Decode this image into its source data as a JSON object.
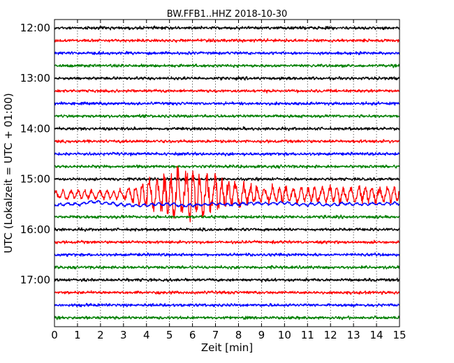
{
  "chart_data": {
    "type": "line",
    "title": "BW.FFB1..HHZ 2018-10-30",
    "xlabel": "Zeit  [min]",
    "ylabel": "UTC (Lokalzeit = UTC + 01:00)",
    "xlim": [
      0,
      15
    ],
    "x_ticks": [
      0,
      1,
      2,
      3,
      4,
      5,
      6,
      7,
      8,
      9,
      10,
      11,
      12,
      13,
      14,
      15
    ],
    "x_tick_labels": [
      "0",
      "1",
      "2",
      "3",
      "4",
      "5",
      "6",
      "7",
      "8",
      "9",
      "10",
      "11",
      "12",
      "13",
      "14",
      "15"
    ],
    "y_tick_labels": [
      "12:00",
      "13:00",
      "14:00",
      "15:00",
      "16:00",
      "17:00"
    ],
    "grid": "vertical dotted at each minute",
    "trace_interval_minutes": 15,
    "start_time": "12:00",
    "color_cycle": [
      "#000000",
      "#ff0000",
      "#0000ff",
      "#008000"
    ],
    "traces": [
      {
        "start": "12:00",
        "color": "#000000"
      },
      {
        "start": "12:15",
        "color": "#ff0000"
      },
      {
        "start": "12:30",
        "color": "#0000ff"
      },
      {
        "start": "12:45",
        "color": "#008000"
      },
      {
        "start": "13:00",
        "color": "#000000"
      },
      {
        "start": "13:15",
        "color": "#ff0000"
      },
      {
        "start": "13:30",
        "color": "#0000ff"
      },
      {
        "start": "13:45",
        "color": "#008000"
      },
      {
        "start": "14:00",
        "color": "#000000"
      },
      {
        "start": "14:15",
        "color": "#ff0000"
      },
      {
        "start": "14:30",
        "color": "#0000ff"
      },
      {
        "start": "14:45",
        "color": "#008000"
      },
      {
        "start": "15:00",
        "color": "#000000"
      },
      {
        "start": "15:15",
        "color": "#ff0000",
        "event": {
          "onset_min": 3.0,
          "peak_min": 5.5,
          "description": "large-amplitude earthquake signal"
        }
      },
      {
        "start": "15:30",
        "color": "#0000ff",
        "event": {
          "onset_min": 0.0,
          "description": "elevated wander"
        }
      },
      {
        "start": "15:45",
        "color": "#008000"
      },
      {
        "start": "16:00",
        "color": "#000000"
      },
      {
        "start": "16:15",
        "color": "#ff0000"
      },
      {
        "start": "16:30",
        "color": "#0000ff"
      },
      {
        "start": "16:45",
        "color": "#008000"
      },
      {
        "start": "17:00",
        "color": "#000000"
      },
      {
        "start": "17:15",
        "color": "#ff0000"
      },
      {
        "start": "17:30",
        "color": "#0000ff"
      },
      {
        "start": "17:45",
        "color": "#008000"
      }
    ]
  }
}
